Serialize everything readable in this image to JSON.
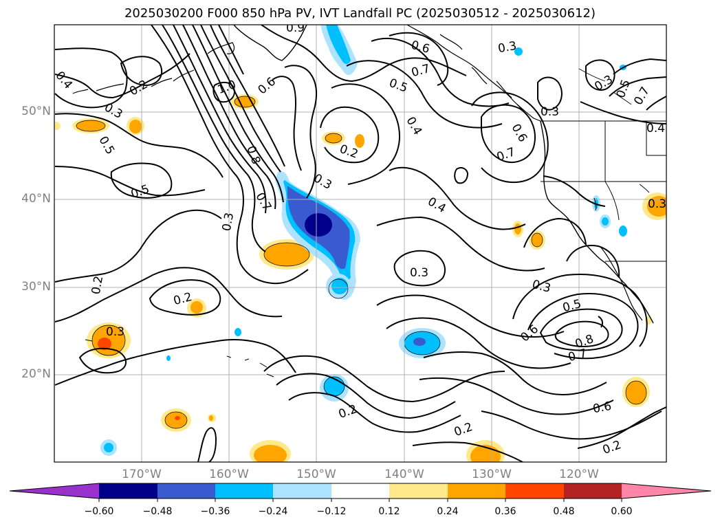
{
  "title": "2025030200 F000 850 hPa PV, IVT Landfall PC (2025030512 - 2025030612)",
  "map": {
    "lat_labels": [
      "50°N",
      "40°N",
      "30°N",
      "20°N"
    ],
    "lon_labels": [
      "170°W",
      "160°W",
      "150°W",
      "140°W",
      "130°W",
      "120°W"
    ],
    "contour_labels": [
      "0.4",
      "0.2",
      "0.3",
      "0.5",
      "1.0",
      "0.6",
      "0.9",
      "0.6",
      "0.7",
      "0.5",
      "0.3",
      "0.4",
      "0.8",
      "0.2",
      "0.7",
      "0.5",
      "0.3",
      "0.3",
      "0.6",
      "0.3",
      "0.5",
      "0.7",
      "0.4",
      "0.7",
      "0.3",
      "0.4",
      "0.2",
      "0.3",
      "0.3",
      "0.2",
      "0.3",
      "0.5",
      "0.6",
      "0.8",
      "0.7",
      "0.2",
      "0.2",
      "0.6",
      "0.2",
      "0.3"
    ]
  },
  "colorbar": {
    "tick_labels": [
      "−0.60",
      "−0.48",
      "−0.36",
      "−0.24",
      "−0.12",
      "0.12",
      "0.24",
      "0.36",
      "0.48",
      "0.60"
    ],
    "colors": [
      "#9932cc",
      "#00008b",
      "#3a5bcf",
      "#00bfff",
      "#ade3ff",
      "#ffffff",
      "#ffe98a",
      "#ffa500",
      "#ff4500",
      "#b22222",
      "#ff86a8"
    ]
  }
}
